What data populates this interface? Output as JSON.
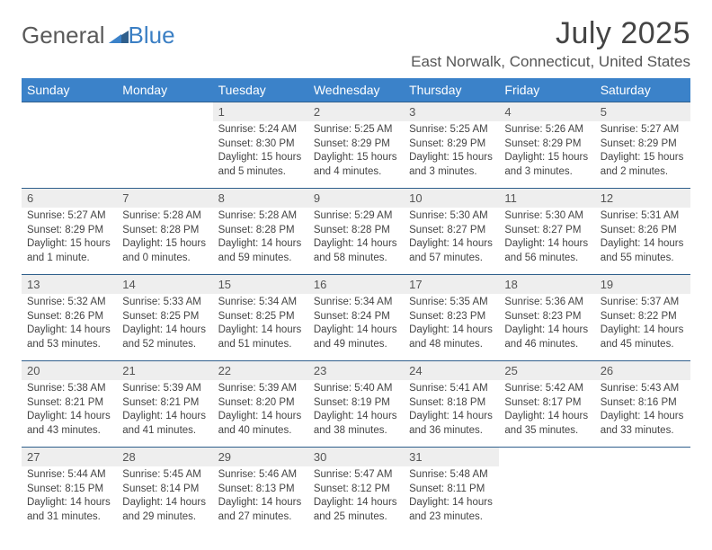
{
  "brand": {
    "part1": "General",
    "part2": "Blue"
  },
  "title": "July 2025",
  "location": "East Norwalk, Connecticut, United States",
  "colors": {
    "header_bg": "#3b82c9",
    "header_text": "#ffffff",
    "daynum_bg": "#eeeeee",
    "border": "#2f5f8c",
    "text": "#444444",
    "brand_gray": "#5a5a5a",
    "brand_blue": "#3b7fc4"
  },
  "day_names": [
    "Sunday",
    "Monday",
    "Tuesday",
    "Wednesday",
    "Thursday",
    "Friday",
    "Saturday"
  ],
  "first_weekday_index": 2,
  "days": [
    {
      "n": 1,
      "sunrise": "5:24 AM",
      "sunset": "8:30 PM",
      "daylight": "15 hours and 5 minutes."
    },
    {
      "n": 2,
      "sunrise": "5:25 AM",
      "sunset": "8:29 PM",
      "daylight": "15 hours and 4 minutes."
    },
    {
      "n": 3,
      "sunrise": "5:25 AM",
      "sunset": "8:29 PM",
      "daylight": "15 hours and 3 minutes."
    },
    {
      "n": 4,
      "sunrise": "5:26 AM",
      "sunset": "8:29 PM",
      "daylight": "15 hours and 3 minutes."
    },
    {
      "n": 5,
      "sunrise": "5:27 AM",
      "sunset": "8:29 PM",
      "daylight": "15 hours and 2 minutes."
    },
    {
      "n": 6,
      "sunrise": "5:27 AM",
      "sunset": "8:29 PM",
      "daylight": "15 hours and 1 minute."
    },
    {
      "n": 7,
      "sunrise": "5:28 AM",
      "sunset": "8:28 PM",
      "daylight": "15 hours and 0 minutes."
    },
    {
      "n": 8,
      "sunrise": "5:28 AM",
      "sunset": "8:28 PM",
      "daylight": "14 hours and 59 minutes."
    },
    {
      "n": 9,
      "sunrise": "5:29 AM",
      "sunset": "8:28 PM",
      "daylight": "14 hours and 58 minutes."
    },
    {
      "n": 10,
      "sunrise": "5:30 AM",
      "sunset": "8:27 PM",
      "daylight": "14 hours and 57 minutes."
    },
    {
      "n": 11,
      "sunrise": "5:30 AM",
      "sunset": "8:27 PM",
      "daylight": "14 hours and 56 minutes."
    },
    {
      "n": 12,
      "sunrise": "5:31 AM",
      "sunset": "8:26 PM",
      "daylight": "14 hours and 55 minutes."
    },
    {
      "n": 13,
      "sunrise": "5:32 AM",
      "sunset": "8:26 PM",
      "daylight": "14 hours and 53 minutes."
    },
    {
      "n": 14,
      "sunrise": "5:33 AM",
      "sunset": "8:25 PM",
      "daylight": "14 hours and 52 minutes."
    },
    {
      "n": 15,
      "sunrise": "5:34 AM",
      "sunset": "8:25 PM",
      "daylight": "14 hours and 51 minutes."
    },
    {
      "n": 16,
      "sunrise": "5:34 AM",
      "sunset": "8:24 PM",
      "daylight": "14 hours and 49 minutes."
    },
    {
      "n": 17,
      "sunrise": "5:35 AM",
      "sunset": "8:23 PM",
      "daylight": "14 hours and 48 minutes."
    },
    {
      "n": 18,
      "sunrise": "5:36 AM",
      "sunset": "8:23 PM",
      "daylight": "14 hours and 46 minutes."
    },
    {
      "n": 19,
      "sunrise": "5:37 AM",
      "sunset": "8:22 PM",
      "daylight": "14 hours and 45 minutes."
    },
    {
      "n": 20,
      "sunrise": "5:38 AM",
      "sunset": "8:21 PM",
      "daylight": "14 hours and 43 minutes."
    },
    {
      "n": 21,
      "sunrise": "5:39 AM",
      "sunset": "8:21 PM",
      "daylight": "14 hours and 41 minutes."
    },
    {
      "n": 22,
      "sunrise": "5:39 AM",
      "sunset": "8:20 PM",
      "daylight": "14 hours and 40 minutes."
    },
    {
      "n": 23,
      "sunrise": "5:40 AM",
      "sunset": "8:19 PM",
      "daylight": "14 hours and 38 minutes."
    },
    {
      "n": 24,
      "sunrise": "5:41 AM",
      "sunset": "8:18 PM",
      "daylight": "14 hours and 36 minutes."
    },
    {
      "n": 25,
      "sunrise": "5:42 AM",
      "sunset": "8:17 PM",
      "daylight": "14 hours and 35 minutes."
    },
    {
      "n": 26,
      "sunrise": "5:43 AM",
      "sunset": "8:16 PM",
      "daylight": "14 hours and 33 minutes."
    },
    {
      "n": 27,
      "sunrise": "5:44 AM",
      "sunset": "8:15 PM",
      "daylight": "14 hours and 31 minutes."
    },
    {
      "n": 28,
      "sunrise": "5:45 AM",
      "sunset": "8:14 PM",
      "daylight": "14 hours and 29 minutes."
    },
    {
      "n": 29,
      "sunrise": "5:46 AM",
      "sunset": "8:13 PM",
      "daylight": "14 hours and 27 minutes."
    },
    {
      "n": 30,
      "sunrise": "5:47 AM",
      "sunset": "8:12 PM",
      "daylight": "14 hours and 25 minutes."
    },
    {
      "n": 31,
      "sunrise": "5:48 AM",
      "sunset": "8:11 PM",
      "daylight": "14 hours and 23 minutes."
    }
  ],
  "labels": {
    "sunrise": "Sunrise:",
    "sunset": "Sunset:",
    "daylight": "Daylight:"
  }
}
